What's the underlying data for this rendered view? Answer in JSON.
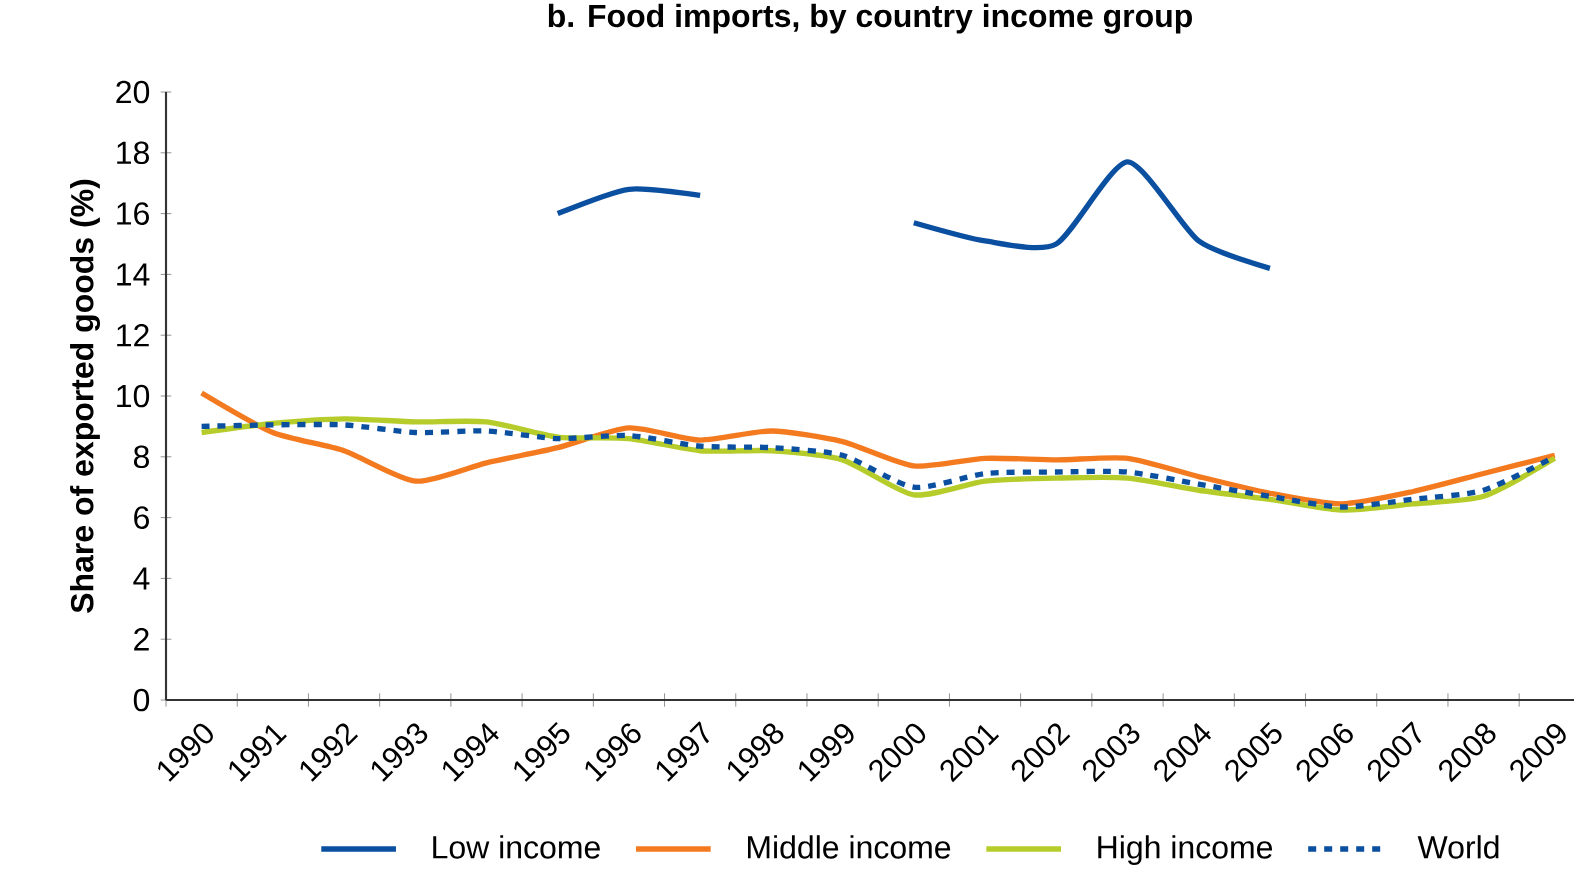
{
  "chart_data": {
    "type": "line",
    "title": "b. Food imports, by country income group",
    "ylabel": "Share of exported goods (%)",
    "categories": [
      "1990",
      "1991",
      "1992",
      "1993",
      "1994",
      "1995",
      "1996",
      "1997",
      "1998",
      "1999",
      "2000",
      "2001",
      "2002",
      "2003",
      "2004",
      "2005",
      "2006",
      "2007",
      "2008",
      "2009"
    ],
    "series": [
      {
        "name": "Low income",
        "color": "#0a4fa0",
        "line_style": "solid",
        "values": [
          null,
          null,
          null,
          null,
          null,
          16.0,
          16.8,
          16.6,
          null,
          null,
          15.7,
          15.1,
          15.0,
          17.7,
          15.1,
          14.2,
          null,
          null,
          null,
          null
        ]
      },
      {
        "name": "Middle income",
        "color": "#f47a20",
        "line_style": "solid",
        "values": [
          10.1,
          8.8,
          8.2,
          7.2,
          7.8,
          8.3,
          8.95,
          8.55,
          8.85,
          8.5,
          7.7,
          7.95,
          7.9,
          7.95,
          7.35,
          6.8,
          6.45,
          6.85,
          7.45,
          8.05
        ]
      },
      {
        "name": "High income",
        "color": "#b5cc2a",
        "line_style": "solid",
        "values": [
          8.8,
          9.1,
          9.25,
          9.15,
          9.15,
          8.65,
          8.6,
          8.2,
          8.2,
          7.9,
          6.75,
          7.2,
          7.3,
          7.3,
          6.9,
          6.6,
          6.25,
          6.45,
          6.7,
          7.95
        ]
      },
      {
        "name": "World",
        "color": "#0a4fa0",
        "line_style": "dashed",
        "values": [
          9.0,
          9.05,
          9.05,
          8.8,
          8.85,
          8.6,
          8.7,
          8.35,
          8.3,
          8.05,
          7.0,
          7.45,
          7.5,
          7.5,
          7.1,
          6.7,
          6.35,
          6.6,
          6.9,
          8.0
        ]
      }
    ],
    "ylim": [
      0,
      20
    ],
    "yticks": [
      0,
      2,
      4,
      6,
      8,
      10,
      12,
      14,
      16,
      18,
      20
    ],
    "legend": "bottom",
    "grid": false
  }
}
